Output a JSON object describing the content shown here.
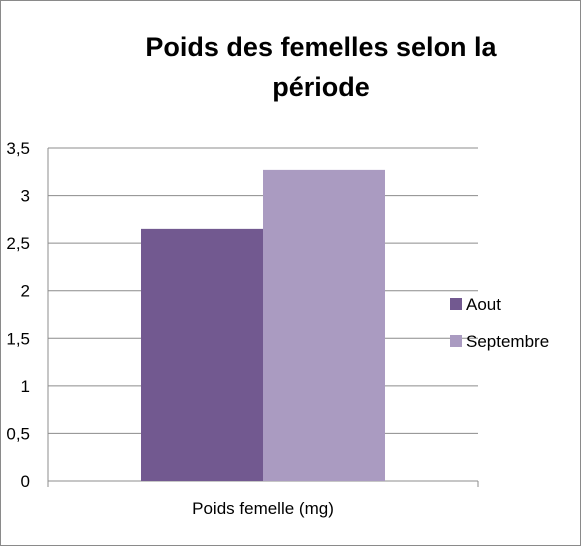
{
  "chart_data": {
    "type": "bar",
    "title": "Poids des femelles selon la période",
    "categories": [
      "Poids femelle (mg)"
    ],
    "series": [
      {
        "name": "Aout",
        "values": [
          2.65
        ],
        "color": "#725990"
      },
      {
        "name": "Septembre",
        "values": [
          3.27
        ],
        "color": "#aa9bc1"
      }
    ],
    "ylim": [
      0,
      3.5
    ],
    "yticks": [
      "0",
      "0,5",
      "1",
      "1,5",
      "2",
      "2,5",
      "3",
      "3,5"
    ],
    "grid": true,
    "legend_position": "right"
  }
}
